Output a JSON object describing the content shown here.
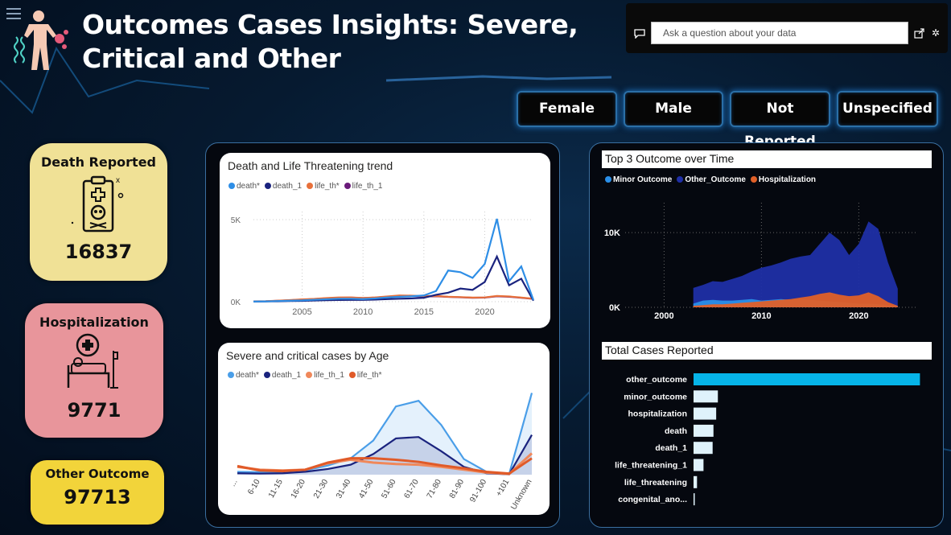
{
  "header": {
    "title": "Outcomes Cases Insights: Severe, Critical and Other"
  },
  "qna": {
    "placeholder": "Ask a question about your data"
  },
  "filters": [
    "Female",
    "Male",
    "Not Reported",
    "Unspecified"
  ],
  "kpis": {
    "death": {
      "label": "Death Reported",
      "value": "16837",
      "color": "#f0e196"
    },
    "hospitalization": {
      "label": "Hospitalization",
      "value": "9771",
      "color": "#e8959b"
    },
    "other": {
      "label": "Other Outcome",
      "value": "97713",
      "color": "#f2d43a"
    }
  },
  "icons": {
    "logo": "human-body-dna-icon",
    "death": "clipboard-skull-icon",
    "hospitalization": "hospital-bed-icon",
    "chat": "chat-bubble-icon",
    "share": "share-icon",
    "gear": "gear-icon"
  },
  "chart_data": [
    {
      "id": "trend",
      "type": "line",
      "title": "Death and Life Threatening trend",
      "xlim": [
        2001,
        2024
      ],
      "ylim": [
        0,
        5000
      ],
      "x_ticks": [
        2005,
        2010,
        2015,
        2020
      ],
      "y_ticks": [
        {
          "v": 0,
          "label": "0K"
        },
        {
          "v": 5000,
          "label": "5K"
        }
      ],
      "x": [
        2001,
        2002,
        2003,
        2004,
        2005,
        2006,
        2007,
        2008,
        2009,
        2010,
        2011,
        2012,
        2013,
        2014,
        2015,
        2016,
        2017,
        2018,
        2019,
        2020,
        2021,
        2022,
        2023,
        2024
      ],
      "series": [
        {
          "name": "death*",
          "color": "#2e8ee6",
          "values": [
            10,
            20,
            40,
            60,
            80,
            120,
            150,
            180,
            180,
            160,
            200,
            260,
            300,
            330,
            380,
            650,
            1900,
            1800,
            1450,
            2300,
            5050,
            1250,
            2150,
            100
          ]
        },
        {
          "name": "death_1",
          "color": "#1a237e",
          "values": [
            10,
            15,
            25,
            40,
            50,
            70,
            90,
            100,
            110,
            110,
            130,
            160,
            180,
            200,
            240,
            420,
            550,
            800,
            720,
            1200,
            2750,
            1000,
            1400,
            60
          ]
        },
        {
          "name": "life_th*",
          "color": "#e8703a",
          "values": [
            20,
            30,
            60,
            100,
            140,
            170,
            220,
            260,
            260,
            230,
            260,
            320,
            380,
            370,
            340,
            350,
            300,
            280,
            250,
            260,
            350,
            320,
            250,
            180
          ]
        },
        {
          "name": "life_th_1",
          "color": "#6a1b7a",
          "values": [
            15,
            25,
            55,
            90,
            130,
            160,
            210,
            240,
            250,
            220,
            250,
            300,
            350,
            350,
            320,
            330,
            290,
            270,
            240,
            250,
            330,
            300,
            240,
            170
          ]
        }
      ]
    },
    {
      "id": "age",
      "type": "area",
      "title": "Severe and critical cases by Age",
      "categories": [
        "...",
        "6-10",
        "11-15",
        "16-20",
        "21-30",
        "31-40",
        "41-50",
        "51-60",
        "61-70",
        "71-80",
        "81-90",
        "91-100",
        "+101",
        "Unknown"
      ],
      "ylim": [
        0,
        1200
      ],
      "series": [
        {
          "name": "death*",
          "color": "#4a9ee8",
          "values": [
            40,
            35,
            40,
            60,
            130,
            230,
            480,
            960,
            1040,
            700,
            220,
            40,
            10,
            1150
          ]
        },
        {
          "name": "death_1",
          "color": "#1a237e",
          "values": [
            20,
            15,
            20,
            40,
            80,
            140,
            290,
            510,
            530,
            330,
            110,
            20,
            5,
            560
          ]
        },
        {
          "name": "life_th_1",
          "color": "#f0885a",
          "values": [
            110,
            70,
            60,
            70,
            160,
            210,
            170,
            150,
            140,
            110,
            70,
            30,
            10,
            300
          ]
        },
        {
          "name": "life_th*",
          "color": "#e05a28",
          "values": [
            120,
            60,
            50,
            70,
            170,
            230,
            230,
            210,
            180,
            130,
            90,
            40,
            15,
            230
          ]
        }
      ]
    },
    {
      "id": "top3",
      "type": "area",
      "title": "Top 3 Outcome over Time",
      "xlim": [
        1996,
        2026
      ],
      "ylim": [
        0,
        14000
      ],
      "x_ticks": [
        2000,
        2010,
        2020
      ],
      "y_ticks": [
        {
          "v": 0,
          "label": "0K"
        },
        {
          "v": 10000,
          "label": "10K"
        }
      ],
      "x": [
        2003,
        2004,
        2005,
        2006,
        2007,
        2008,
        2009,
        2010,
        2011,
        2012,
        2013,
        2014,
        2015,
        2016,
        2017,
        2018,
        2019,
        2020,
        2021,
        2022,
        2023,
        2024
      ],
      "series": [
        {
          "name": "Minor Outcome",
          "color": "#2a8fe8",
          "values": [
            500,
            900,
            1000,
            900,
            900,
            1000,
            1100,
            900,
            1000,
            1100,
            1000,
            1100,
            1000,
            900,
            800,
            700,
            600,
            500,
            500,
            400,
            300,
            200
          ]
        },
        {
          "name": "Other_Outcome",
          "color": "#1f2fa6",
          "values": [
            2600,
            3000,
            3500,
            3400,
            3800,
            4200,
            4800,
            5300,
            5600,
            6000,
            6500,
            6800,
            7000,
            8500,
            10000,
            9000,
            7000,
            8500,
            11500,
            10500,
            6000,
            2500
          ]
        },
        {
          "name": "Hospitalization",
          "color": "#e06028",
          "values": [
            200,
            300,
            400,
            400,
            500,
            600,
            700,
            800,
            900,
            1000,
            1100,
            1300,
            1500,
            1800,
            2000,
            1700,
            1500,
            1600,
            2000,
            1500,
            700,
            200
          ]
        }
      ]
    },
    {
      "id": "total",
      "type": "bar",
      "title": "Total Cases Reported",
      "categories": [
        "other_outcome",
        "minor_outcome",
        "hospitalization",
        "death",
        "death_1",
        "life_threatening_1",
        "life_threatening",
        "congenital_ano..."
      ],
      "values": [
        97713,
        10500,
        9771,
        8600,
        8237,
        4300,
        1500,
        200
      ],
      "xlim": [
        0,
        100000
      ],
      "colors": [
        "#06b4e8",
        "#dff2fb",
        "#dff2fb",
        "#dff2fb",
        "#dff2fb",
        "#dff2fb",
        "#dff2fb",
        "#dff2fb"
      ]
    }
  ]
}
